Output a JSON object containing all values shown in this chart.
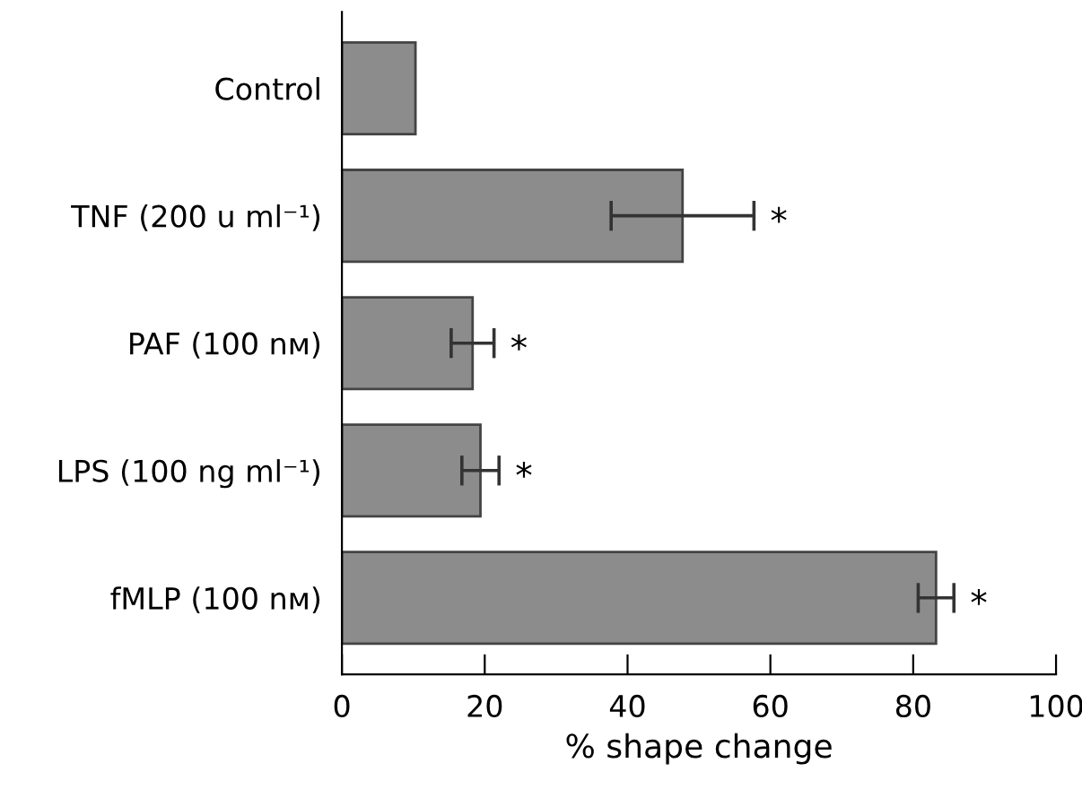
{
  "chart_data": {
    "type": "bar",
    "orientation": "horizontal",
    "xlabel": "% shape change",
    "categories": [
      "Control",
      "TNF (200 u ml⁻¹)",
      "PAF (100 nᴍ)",
      "LPS (100 ng ml⁻¹)",
      "fMLP (100 nᴍ)"
    ],
    "values": [
      10.3,
      47.7,
      18.3,
      19.4,
      83.2
    ],
    "errors": [
      null,
      10,
      3,
      2.6,
      2.5
    ],
    "color": "#8c8c8c",
    "xlim": [
      0,
      100
    ],
    "xticks": [
      0,
      20,
      40,
      60,
      80,
      100
    ],
    "grid": false,
    "annotations": [
      {
        "text": "*",
        "x": 47.7,
        "y": "TNF (200 u ml⁻¹)"
      },
      {
        "text": "*",
        "x": 18.3,
        "y": "PAF (100 nᴍ)"
      },
      {
        "text": "*",
        "x": 19.4,
        "y": "LPS (100 ng ml⁻¹)"
      },
      {
        "text": "*",
        "x": 83.2,
        "y": "fMLP (100 nᴍ)"
      }
    ]
  }
}
